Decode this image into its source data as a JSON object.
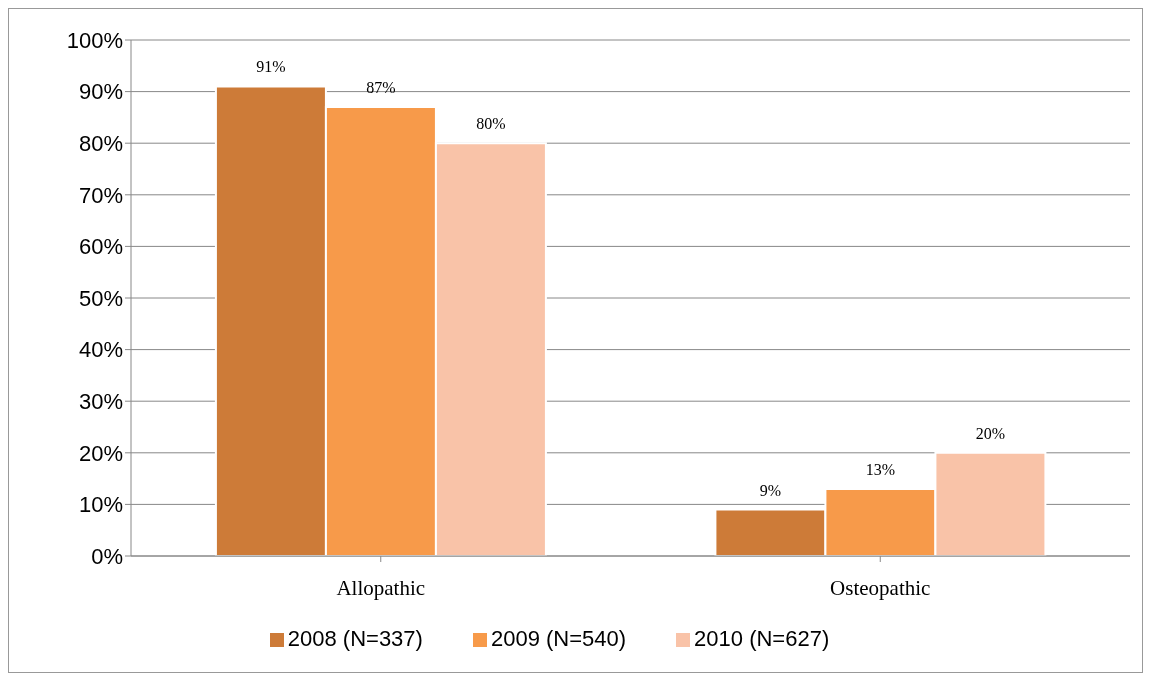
{
  "chart_data": {
    "type": "bar",
    "categories": [
      "Allopathic",
      "Osteopathic"
    ],
    "series": [
      {
        "name": "2008 (N=337)",
        "color": "#cd7b38",
        "values": [
          91,
          9
        ],
        "value_labels": [
          "91%",
          "9%"
        ]
      },
      {
        "name": "2009 (N=540)",
        "color": "#f79a4a",
        "values": [
          87,
          13
        ],
        "value_labels": [
          "87%",
          "13%"
        ]
      },
      {
        "name": "2010 (N=627)",
        "color": "#f9c3a8",
        "values": [
          80,
          20
        ],
        "value_labels": [
          "80%",
          "20%"
        ]
      }
    ],
    "ylim": [
      0,
      100
    ],
    "yticks": [
      {
        "value": 0,
        "label": "0%"
      },
      {
        "value": 10,
        "label": "10%"
      },
      {
        "value": 20,
        "label": "20%"
      },
      {
        "value": 30,
        "label": "30%"
      },
      {
        "value": 40,
        "label": "40%"
      },
      {
        "value": 50,
        "label": "50%"
      },
      {
        "value": 60,
        "label": "60%"
      },
      {
        "value": 70,
        "label": "70%"
      },
      {
        "value": 80,
        "label": "80%"
      },
      {
        "value": 90,
        "label": "90%"
      },
      {
        "value": 100,
        "label": "100%"
      }
    ],
    "grid": "y",
    "legend": "bottom"
  }
}
